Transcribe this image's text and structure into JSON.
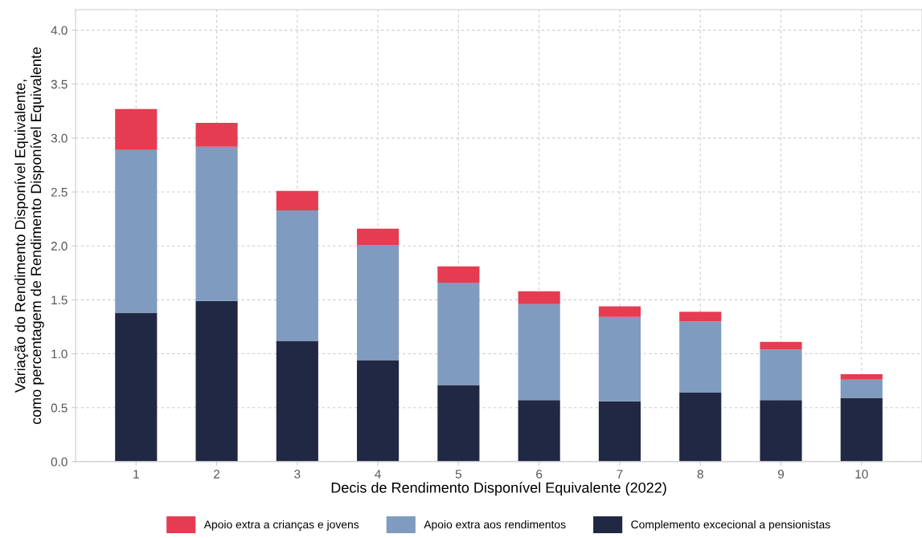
{
  "chart_data": {
    "type": "bar",
    "stacked": true,
    "xlabel": "Decis de Rendimento Disponível Equivalente (2022)",
    "ylabel": "Variação do Rendimento Disponível Equivalente,\ncomo percentagem de Rendimento Disponível Equivalente",
    "categories": [
      "1",
      "2",
      "3",
      "4",
      "5",
      "6",
      "7",
      "8",
      "9",
      "10"
    ],
    "series": [
      {
        "name": "Complemento excecional a pensionistas",
        "color": "#212844",
        "values": [
          1.38,
          1.49,
          1.12,
          0.94,
          0.71,
          0.57,
          0.56,
          0.64,
          0.57,
          0.59
        ]
      },
      {
        "name": "Apoio extra aos rendimentos",
        "color": "#7f9bbf",
        "values": [
          1.51,
          1.43,
          1.21,
          1.07,
          0.95,
          0.89,
          0.78,
          0.66,
          0.47,
          0.17
        ]
      },
      {
        "name": "Apoio extra a crianças e jovens",
        "color": "#e53c51",
        "values": [
          0.38,
          0.22,
          0.18,
          0.15,
          0.15,
          0.12,
          0.1,
          0.09,
          0.07,
          0.05
        ]
      }
    ],
    "ylim": [
      0,
      4.19
    ],
    "yticks": [
      {
        "value": 0,
        "label": "0.0"
      },
      {
        "value": 0.5,
        "label": "0.5"
      },
      {
        "value": 1,
        "label": "1.0"
      },
      {
        "value": 1.5,
        "label": "1.5"
      },
      {
        "value": 2,
        "label": "2.0"
      },
      {
        "value": 2.5,
        "label": "2.5"
      },
      {
        "value": 3,
        "label": "3.0"
      },
      {
        "value": 3.5,
        "label": "3.5"
      },
      {
        "value": 4,
        "label": "4.0"
      }
    ],
    "grid": true,
    "legend": "bottom"
  }
}
